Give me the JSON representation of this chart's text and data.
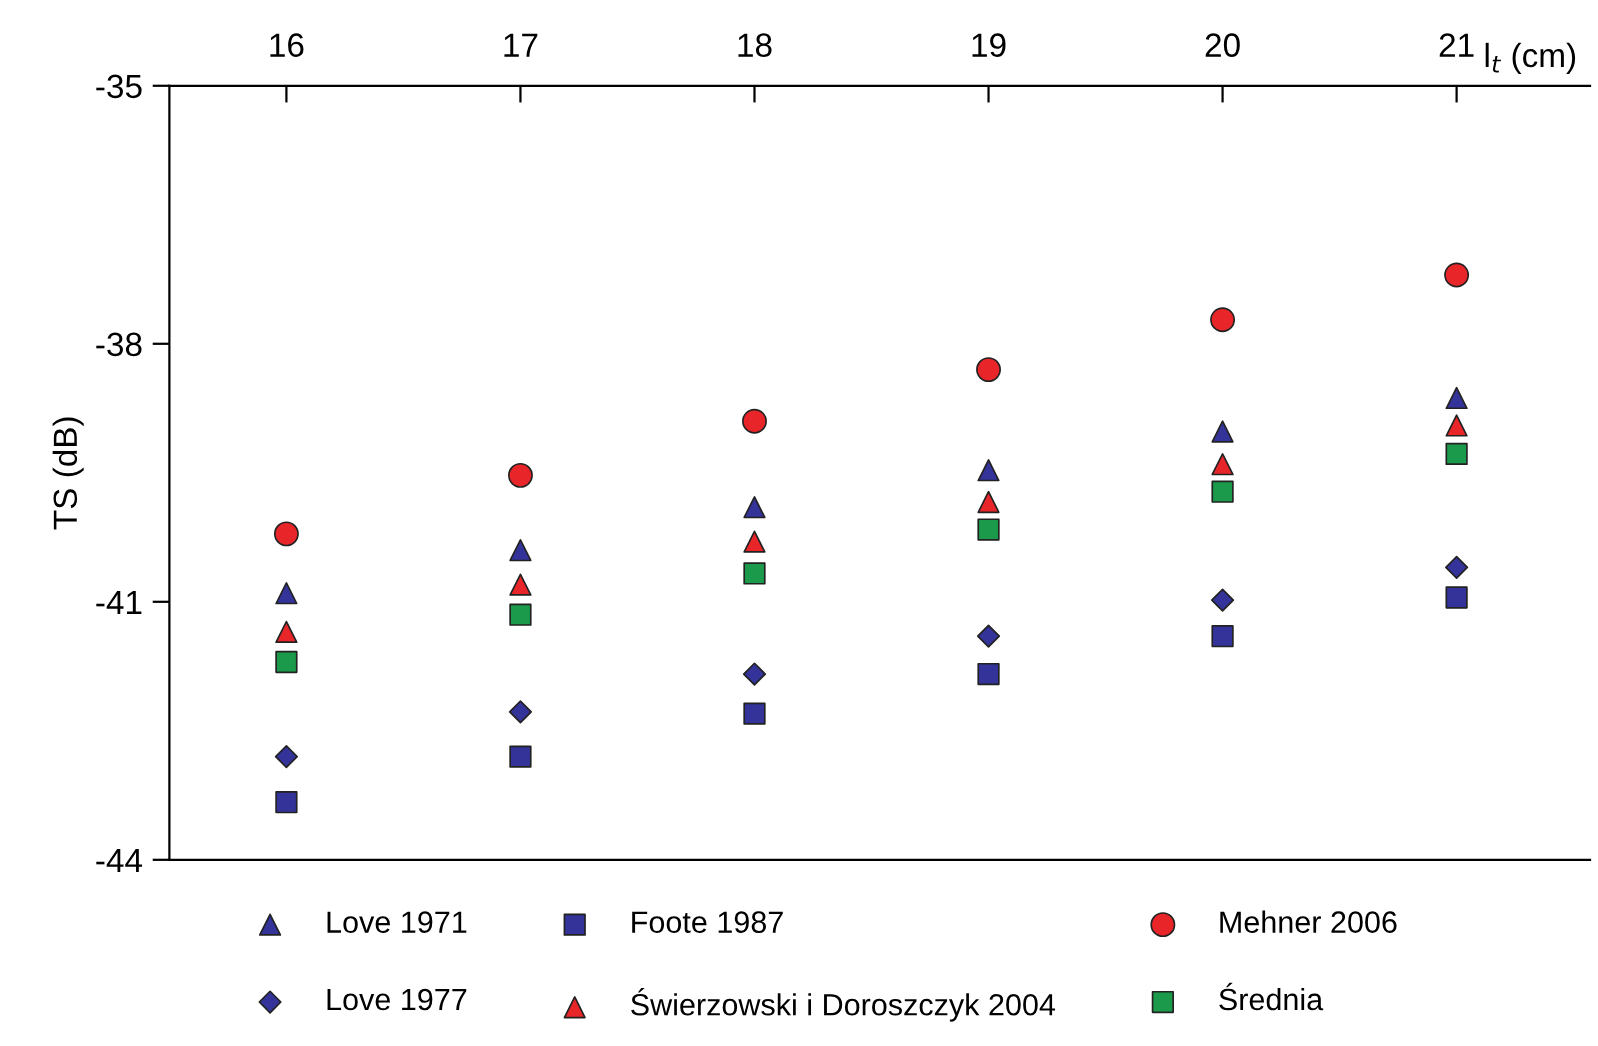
{
  "chart_data": {
    "type": "scatter",
    "xlabel": "l$_{t}$ (cm)",
    "ylabel": "TS (dB)",
    "x": [
      16,
      17,
      18,
      19,
      20,
      21
    ],
    "xlim": [
      15.5,
      21.57
    ],
    "xticks": [
      16,
      17,
      18,
      19,
      20,
      21
    ],
    "ylim": [
      -44,
      -35
    ],
    "yticks": [
      -35,
      -38,
      -41,
      -44
    ],
    "grid": false,
    "legend": "bottom",
    "series": [
      {
        "name": "Love 1971",
        "color": "#333399",
        "marker": "triangle",
        "values": [
          -40.9,
          -40.4,
          -39.9,
          -39.47,
          -39.02,
          -38.63
        ]
      },
      {
        "name": "Love 1977",
        "color": "#333399",
        "marker": "diamond",
        "values": [
          -42.8,
          -42.28,
          -41.84,
          -41.4,
          -40.98,
          -40.6
        ]
      },
      {
        "name": "Foote 1987",
        "color": "#333399",
        "marker": "square",
        "values": [
          -43.33,
          -42.8,
          -42.3,
          -41.84,
          -41.4,
          -40.95
        ]
      },
      {
        "name": "Świerzowski i Doroszczyk 2004",
        "color": "#e8262a",
        "marker": "triangle",
        "values": [
          -41.35,
          -40.8,
          -40.3,
          -39.84,
          -39.4,
          -38.95
        ]
      },
      {
        "name": "Mehner 2006",
        "color": "#e8262a",
        "marker": "circle",
        "values": [
          -40.21,
          -39.53,
          -38.9,
          -38.3,
          -37.72,
          -37.2
        ]
      },
      {
        "name": "Średnia",
        "color": "#1a9a4a",
        "marker": "square",
        "values": [
          -41.7,
          -41.15,
          -40.67,
          -40.16,
          -39.72,
          -39.28
        ]
      }
    ]
  }
}
